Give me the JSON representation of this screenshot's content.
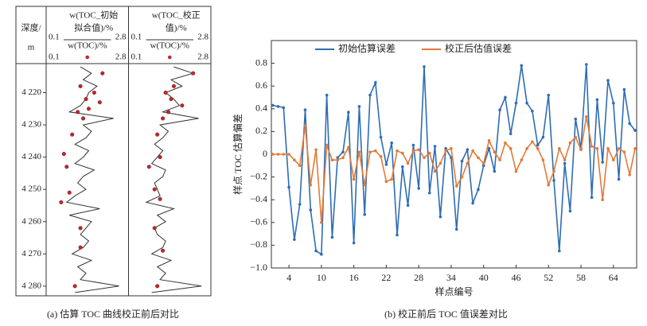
{
  "chart_data": [
    {
      "type": "well-log",
      "caption": "(a) 估算 TOC 曲线校正前后对比",
      "depth_label_lines": [
        "深度/",
        "m"
      ],
      "ylim": [
        4211,
        4283
      ],
      "yticks": [
        {
          "value": 4220,
          "label": "4 220"
        },
        {
          "value": 4230,
          "label": "4 230"
        },
        {
          "value": 4240,
          "label": "4 240"
        },
        {
          "value": 4250,
          "label": "4 250"
        },
        {
          "value": 4260,
          "label": "4 260"
        },
        {
          "value": 4270,
          "label": "4 270"
        },
        {
          "value": 4280,
          "label": "4 280"
        }
      ],
      "depth": [
        4212,
        4214,
        4216,
        4218,
        4220,
        4222,
        4224,
        4226,
        4228,
        4230,
        4232,
        4234,
        4236,
        4238,
        4240,
        4242,
        4244,
        4246,
        4248,
        4250,
        4252,
        4254,
        4256,
        4258,
        4260,
        4262,
        4264,
        4266,
        4268,
        4270,
        4272,
        4274,
        4276,
        4278,
        4280,
        4282
      ],
      "tracks": [
        {
          "title_lines": [
            "w(TOC_初始",
            "拟合值)/%"
          ],
          "dots_label": "w(TOC)/%",
          "xlim": [
            0.1,
            2.8
          ],
          "color": "#333333",
          "dot_color": "#c0282d",
          "values": [
            1.2,
            1.6,
            1.3,
            1.8,
            1.5,
            1.4,
            1.2,
            0.8,
            2.4,
            1.3,
            1.6,
            1.4,
            1.0,
            1.5,
            1.3,
            1.0,
            1.7,
            1.3,
            1.1,
            1.4,
            1.0,
            0.7,
            1.9,
            0.8,
            1.6,
            1.4,
            1.2,
            1.5,
            1.3,
            0.9,
            1.6,
            1.1,
            1.4,
            1.2,
            2.6,
            1.0
          ],
          "dots": {
            "depth": [
              4214,
              4218,
              4220,
              4222,
              4223,
              4225,
              4226,
              4228,
              4233,
              4239,
              4243,
              4251,
              4254,
              4262,
              4268,
              4280
            ],
            "values": [
              2.0,
              1.2,
              1.7,
              1.4,
              1.9,
              1.5,
              1.1,
              1.3,
              0.9,
              0.6,
              0.7,
              0.8,
              0.5,
              1.2,
              1.2,
              1.0
            ]
          }
        },
        {
          "title_lines": [
            "w(TOC_校正",
            "值)/%"
          ],
          "dots_label": "w(TOC)/%",
          "xlim": [
            0.1,
            2.8
          ],
          "color": "#333333",
          "dot_color": "#c0282d",
          "values": [
            1.6,
            2.3,
            1.5,
            1.9,
            1.3,
            1.6,
            1.8,
            1.2,
            2.5,
            1.1,
            1.4,
            1.2,
            0.9,
            1.2,
            1.0,
            0.8,
            1.3,
            1.2,
            0.9,
            1.0,
            1.1,
            0.6,
            1.6,
            1.0,
            1.3,
            0.9,
            1.0,
            1.3,
            1.2,
            0.8,
            1.5,
            1.0,
            1.3,
            1.1,
            2.6,
            0.8
          ],
          "dots": {
            "depth": [
              4214,
              4218,
              4220,
              4222,
              4224,
              4226,
              4228,
              4233,
              4240,
              4243,
              4250,
              4253,
              4262,
              4269,
              4280
            ],
            "values": [
              2.3,
              1.6,
              1.3,
              1.5,
              1.9,
              1.4,
              1.2,
              1.0,
              1.1,
              0.7,
              0.9,
              1.1,
              0.9,
              1.2,
              1.0
            ]
          }
        }
      ]
    },
    {
      "type": "line",
      "caption": "(b) 校正前后 TOC 值误差对比",
      "y_label": "样点 TOC 估算偏差",
      "x_label": "样点编号",
      "xlim": [
        0.75,
        68.3
      ],
      "xticks": [
        4,
        10,
        16,
        22,
        28,
        34,
        40,
        46,
        52,
        58,
        64
      ],
      "ylim": [
        -1,
        1
      ],
      "yticks": [
        0.8,
        0.6,
        0.4,
        0.2,
        0,
        {
          "value": -0.2,
          "label": "−0.2"
        },
        {
          "value": -0.4,
          "label": "−0.4"
        },
        {
          "value": -0.6,
          "label": "−0.6"
        },
        {
          "value": -0.8,
          "label": "−0.8"
        },
        {
          "value": -1,
          "label": "−1.0"
        }
      ],
      "x": [
        1,
        2,
        3,
        4,
        5,
        6,
        7,
        8,
        9,
        10,
        11,
        12,
        13,
        14,
        15,
        16,
        17,
        18,
        19,
        20,
        21,
        22,
        23,
        24,
        25,
        26,
        27,
        28,
        29,
        30,
        31,
        32,
        33,
        34,
        35,
        36,
        37,
        38,
        39,
        40,
        41,
        42,
        43,
        44,
        45,
        46,
        47,
        48,
        49,
        50,
        51,
        52,
        53,
        54,
        55,
        56,
        57,
        58,
        59,
        60,
        61,
        62,
        63,
        64,
        65,
        66,
        67,
        68
      ],
      "series": [
        {
          "name": "初始估算误差",
          "color": "#2e6db4",
          "values": [
            0.43,
            0.42,
            0.41,
            -0.29,
            -0.75,
            -0.44,
            0.39,
            -0.49,
            -0.85,
            -0.88,
            0.52,
            -0.73,
            -0.03,
            0.02,
            0.37,
            -0.78,
            0.42,
            -0.53,
            0.52,
            0.63,
            0.15,
            -0.09,
            0.1,
            -0.71,
            -0.11,
            -0.45,
            0.08,
            -0.3,
            0.77,
            -0.34,
            0.07,
            -0.55,
            0.05,
            -0.03,
            -0.66,
            -0.06,
            0.04,
            -0.43,
            -0.31,
            -0.1,
            0.05,
            -0.15,
            0.39,
            0.5,
            0.18,
            0.45,
            0.78,
            0.45,
            0.38,
            0.08,
            0.15,
            0.52,
            -0.23,
            -0.85,
            -0.08,
            -0.5,
            0.31,
            0.05,
            0.79,
            -0.38,
            0.48,
            -0.07,
            0.65,
            0.45,
            -0.22,
            0.57,
            0.27,
            0.21
          ]
        },
        {
          "name": "校正后估值误差",
          "color": "#e07b39",
          "values": [
            0,
            0,
            0,
            0,
            -0.05,
            -0.1,
            0.25,
            -0.27,
            0.04,
            -0.6,
            0.08,
            -0.05,
            -0.05,
            -0.03,
            0.06,
            -0.22,
            0.02,
            -0.27,
            0.02,
            0.03,
            -0.02,
            -0.24,
            -0.22,
            0.03,
            0.01,
            -0.08,
            0.03,
            0.04,
            -0.03,
            0.01,
            -0.15,
            -0.08,
            0.03,
            0.05,
            -0.28,
            -0.2,
            -0.08,
            0.03,
            -0.03,
            -0.08,
            0.12,
            0.02,
            -0.05,
            0.1,
            0.05,
            -0.15,
            -0.05,
            0.05,
            0.11,
            0.05,
            -0.05,
            -0.27,
            -0.15,
            0.05,
            -0.05,
            0.1,
            0.15,
            0.04,
            0.33,
            0.07,
            0.05,
            -0.4,
            0.05,
            -0.05,
            0.05,
            0.02,
            -0.18,
            0.05
          ]
        }
      ]
    }
  ]
}
